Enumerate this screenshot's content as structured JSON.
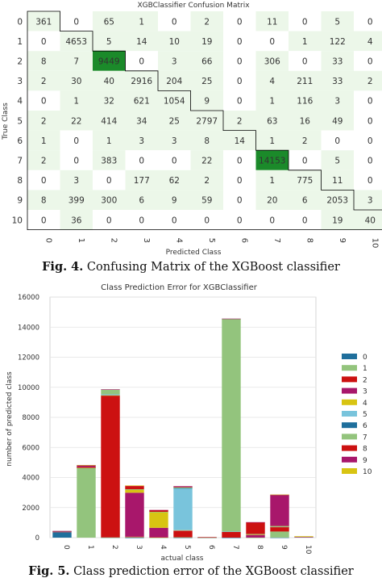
{
  "chart_data": [
    {
      "type": "heatmap",
      "title": "XGBClassifier Confusion Matrix",
      "xlabel": "Predicted Class",
      "ylabel": "True Class",
      "classes": [
        "0",
        "1",
        "2",
        "3",
        "4",
        "5",
        "6",
        "7",
        "8",
        "9",
        "10"
      ],
      "matrix": [
        [
          361,
          0,
          65,
          1,
          0,
          2,
          0,
          11,
          0,
          5,
          0
        ],
        [
          0,
          4653,
          5,
          14,
          10,
          19,
          0,
          0,
          1,
          122,
          4
        ],
        [
          8,
          7,
          9449,
          0,
          3,
          66,
          0,
          306,
          0,
          33,
          0
        ],
        [
          2,
          30,
          40,
          2916,
          204,
          25,
          0,
          4,
          211,
          33,
          2
        ],
        [
          0,
          1,
          32,
          621,
          1054,
          9,
          0,
          1,
          116,
          3,
          0
        ],
        [
          2,
          22,
          414,
          34,
          25,
          2797,
          2,
          63,
          16,
          49,
          0
        ],
        [
          1,
          0,
          1,
          3,
          3,
          8,
          14,
          1,
          2,
          0,
          0
        ],
        [
          2,
          0,
          383,
          0,
          0,
          22,
          0,
          14153,
          0,
          5,
          0
        ],
        [
          0,
          3,
          0,
          177,
          62,
          2,
          0,
          1,
          775,
          11,
          0
        ],
        [
          8,
          399,
          300,
          6,
          9,
          59,
          0,
          20,
          6,
          2053,
          3
        ],
        [
          0,
          36,
          0,
          0,
          0,
          0,
          0,
          0,
          0,
          19,
          40
        ]
      ],
      "highlight_color": "#1b8a2a",
      "cell_color_nonzero": "#ecf7e9",
      "zero_text_color": "#bbbbbb"
    },
    {
      "type": "bar",
      "stacked": true,
      "title": "Class Prediction Error for XGBClassifier",
      "xlabel": "actual class",
      "ylabel": "number of predicted class",
      "categories": [
        "0",
        "1",
        "2",
        "3",
        "4",
        "5",
        "6",
        "7",
        "8",
        "9",
        "10"
      ],
      "ylim": [
        0,
        16000
      ],
      "yticks": [
        0,
        2000,
        4000,
        6000,
        8000,
        10000,
        12000,
        14000,
        16000
      ],
      "legend_position": "right",
      "colors": {
        "0": "#1f6f9c",
        "1": "#93c47d",
        "2": "#cc1111",
        "3": "#a8176b",
        "4": "#d8c412",
        "5": "#79c4dc",
        "6": "#1f6f9c",
        "7": "#93c47d",
        "8": "#cc1111",
        "9": "#a8176b",
        "10": "#d8c412"
      },
      "series": [
        {
          "name": "0",
          "values": [
            361,
            0,
            8,
            2,
            0,
            2,
            1,
            2,
            0,
            8,
            0
          ]
        },
        {
          "name": "1",
          "values": [
            0,
            4653,
            7,
            30,
            1,
            22,
            0,
            0,
            3,
            399,
            36
          ]
        },
        {
          "name": "2",
          "values": [
            65,
            5,
            9449,
            40,
            32,
            414,
            1,
            383,
            0,
            300,
            0
          ]
        },
        {
          "name": "3",
          "values": [
            1,
            14,
            0,
            2916,
            621,
            34,
            3,
            0,
            177,
            6,
            0
          ]
        },
        {
          "name": "4",
          "values": [
            0,
            10,
            3,
            204,
            1054,
            25,
            3,
            0,
            62,
            9,
            0
          ]
        },
        {
          "name": "5",
          "values": [
            2,
            19,
            66,
            25,
            9,
            2797,
            8,
            22,
            2,
            59,
            0
          ]
        },
        {
          "name": "6",
          "values": [
            0,
            0,
            0,
            0,
            0,
            2,
            14,
            0,
            0,
            0,
            0
          ]
        },
        {
          "name": "7",
          "values": [
            11,
            0,
            306,
            4,
            1,
            63,
            1,
            14153,
            1,
            20,
            0
          ]
        },
        {
          "name": "8",
          "values": [
            0,
            1,
            0,
            211,
            116,
            16,
            2,
            0,
            775,
            6,
            0
          ]
        },
        {
          "name": "9",
          "values": [
            5,
            122,
            33,
            33,
            3,
            49,
            0,
            5,
            11,
            2053,
            19
          ]
        },
        {
          "name": "10",
          "values": [
            0,
            4,
            0,
            2,
            0,
            0,
            0,
            0,
            0,
            3,
            40
          ]
        }
      ]
    }
  ],
  "captions": {
    "fig4_label": "Fig. 4.",
    "fig4_text": " Confusing Matrix of the XGBoost classifier",
    "fig5_label": "Fig. 5.",
    "fig5_text": " Class prediction error of the XGBoost classifier"
  }
}
